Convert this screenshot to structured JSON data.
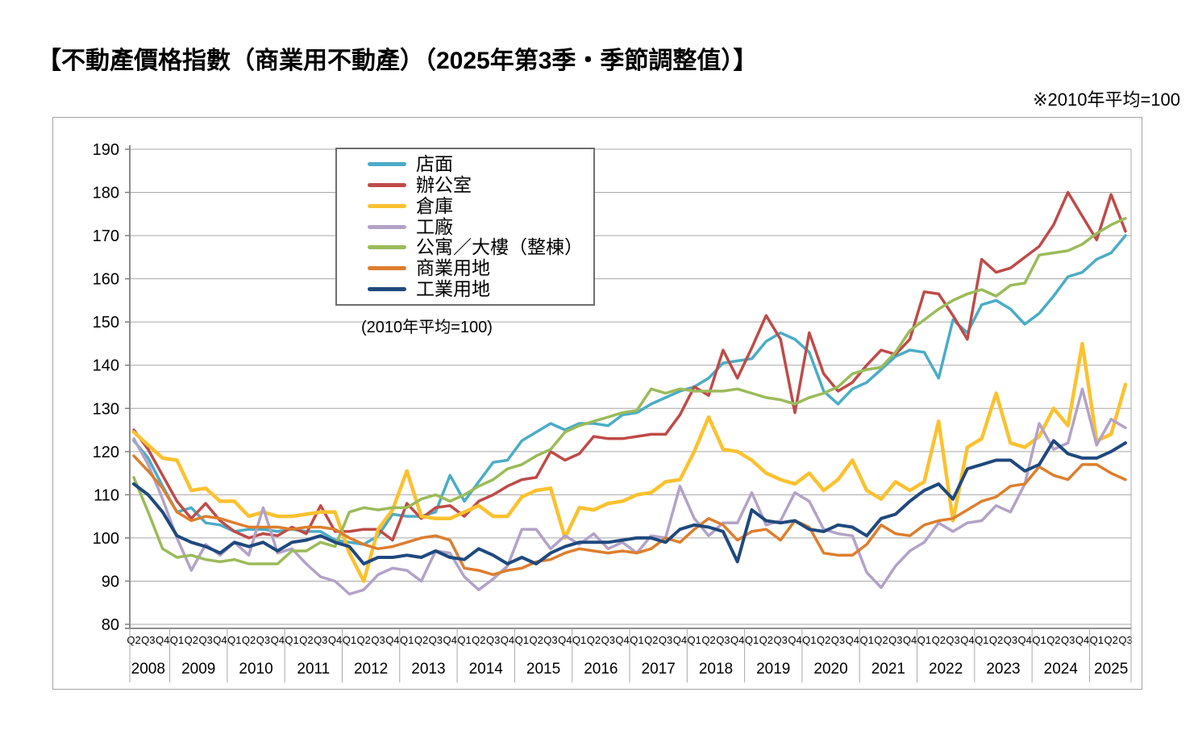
{
  "page": {
    "title": "【不動產價格指數（商業用不動產）（2025年第3季・季節調整值）】",
    "unit_note": "※2010年平均=100"
  },
  "chart_data": {
    "type": "line",
    "title": "不動產價格指數（商業用不動產）",
    "inner_note": "(2010年平均=100)",
    "ylabel": "",
    "xlabel": "",
    "ylim": [
      80,
      190
    ],
    "y_step": 10,
    "grid": true,
    "legend_position": "upper-left-inside",
    "axis_color": "#7f7f7f",
    "grid_color": "#a8a8a8",
    "x_periods": [
      {
        "year": "2008",
        "quarters": [
          "Q2",
          "Q3",
          "Q4"
        ]
      },
      {
        "year": "2009",
        "quarters": [
          "Q1",
          "Q2",
          "Q3",
          "Q4"
        ]
      },
      {
        "year": "2010",
        "quarters": [
          "Q1",
          "Q2",
          "Q3",
          "Q4"
        ]
      },
      {
        "year": "2011",
        "quarters": [
          "Q1",
          "Q2",
          "Q3",
          "Q4"
        ]
      },
      {
        "year": "2012",
        "quarters": [
          "Q1",
          "Q2",
          "Q3",
          "Q4"
        ]
      },
      {
        "year": "2013",
        "quarters": [
          "Q1",
          "Q2",
          "Q3",
          "Q4"
        ]
      },
      {
        "year": "2014",
        "quarters": [
          "Q1",
          "Q2",
          "Q3",
          "Q4"
        ]
      },
      {
        "year": "2015",
        "quarters": [
          "Q1",
          "Q2",
          "Q3",
          "Q4"
        ]
      },
      {
        "year": "2016",
        "quarters": [
          "Q1",
          "Q2",
          "Q3",
          "Q4"
        ]
      },
      {
        "year": "2017",
        "quarters": [
          "Q1",
          "Q2",
          "Q3",
          "Q4"
        ]
      },
      {
        "year": "2018",
        "quarters": [
          "Q1",
          "Q2",
          "Q3",
          "Q4"
        ]
      },
      {
        "year": "2019",
        "quarters": [
          "Q1",
          "Q2",
          "Q3",
          "Q4"
        ]
      },
      {
        "year": "2020",
        "quarters": [
          "Q1",
          "Q2",
          "Q3",
          "Q4"
        ]
      },
      {
        "year": "2021",
        "quarters": [
          "Q1",
          "Q2",
          "Q3",
          "Q4"
        ]
      },
      {
        "year": "2022",
        "quarters": [
          "Q1",
          "Q2",
          "Q3",
          "Q4"
        ]
      },
      {
        "year": "2023",
        "quarters": [
          "Q1",
          "Q2",
          "Q3",
          "Q4"
        ]
      },
      {
        "year": "2024",
        "quarters": [
          "Q1",
          "Q2",
          "Q3",
          "Q4"
        ]
      },
      {
        "year": "2025",
        "quarters": [
          "Q1",
          "Q2",
          "Q3"
        ]
      }
    ],
    "series": [
      {
        "name": "店面",
        "color": "#4BACC6",
        "width": 3.5,
        "values": [
          122.5,
          118.5,
          112,
          106,
          107,
          103.5,
          103,
          101.5,
          102,
          102,
          101.5,
          102,
          101.5,
          101.5,
          99.5,
          99,
          98.5,
          100.5,
          105.5,
          105,
          105,
          106,
          114.5,
          108.5,
          113,
          117.5,
          118,
          122.5,
          124.5,
          126.5,
          125,
          126.5,
          126.5,
          126,
          128.5,
          129,
          131,
          132.5,
          134,
          135,
          137,
          140.5,
          141,
          141.5,
          145.5,
          147.5,
          146,
          143,
          134,
          131,
          134.5,
          136,
          139,
          142,
          143.5,
          143,
          137,
          150.5,
          147.5,
          154,
          155,
          153,
          149.5,
          152,
          156,
          160.5,
          161.5,
          164.5,
          166,
          170
        ]
      },
      {
        "name": "辦公室",
        "color": "#BE4B48",
        "width": 3.5,
        "values": [
          125,
          120.5,
          114.5,
          108.5,
          104.5,
          108,
          104,
          101.5,
          100,
          101,
          100.5,
          102.5,
          101,
          107.5,
          101.5,
          101.5,
          102,
          102,
          99.5,
          108,
          104.5,
          107,
          107.5,
          105,
          108.5,
          110,
          112,
          113.5,
          114,
          120,
          118,
          119.5,
          123.5,
          123,
          123,
          123.5,
          124,
          124,
          128.5,
          135,
          133,
          143.5,
          137,
          144,
          151.5,
          146,
          129,
          147.5,
          138,
          134,
          136,
          140,
          143.5,
          142.5,
          146,
          157,
          156.5,
          151.5,
          146,
          164.5,
          161.5,
          162.5,
          165,
          167.5,
          172.5,
          180,
          174.5,
          169,
          179.5,
          171
        ]
      },
      {
        "name": "倉庫",
        "color": "#FBC12F",
        "width": 4.5,
        "values": [
          124.5,
          121.5,
          118.5,
          118,
          111,
          111.5,
          108.5,
          108.5,
          105,
          106,
          105,
          105,
          105.5,
          106,
          106,
          96.5,
          90,
          102,
          106.5,
          115.5,
          105,
          104.5,
          104.5,
          106,
          107.5,
          105,
          105,
          109.5,
          111,
          111.5,
          100,
          107,
          106.5,
          108,
          108.5,
          110,
          110.5,
          113,
          113.5,
          120,
          128,
          120.5,
          120,
          118,
          115,
          113.5,
          112.5,
          115,
          111,
          113.5,
          118,
          111,
          109,
          113,
          111,
          113,
          127,
          104,
          121,
          123,
          133.5,
          122,
          121,
          123.5,
          130,
          126,
          145,
          122.5,
          124,
          135.5
        ]
      },
      {
        "name": "工廠",
        "color": "#B3A2C7",
        "width": 3.5,
        "values": [
          123,
          117,
          109,
          100,
          92.5,
          98.5,
          96,
          99,
          96,
          107,
          96.5,
          97.5,
          94,
          91,
          90,
          87,
          88,
          91.5,
          93,
          92.5,
          90,
          97,
          96.5,
          91,
          88,
          90.5,
          93.5,
          102,
          102,
          97.5,
          100.5,
          98.5,
          101,
          97.5,
          99,
          96.5,
          100.5,
          100,
          112,
          104.5,
          100.5,
          103.5,
          103.5,
          110.5,
          103,
          104,
          110.5,
          108.5,
          102,
          101,
          100.5,
          92,
          88.5,
          93.5,
          97,
          99,
          103.5,
          101.5,
          103.5,
          104,
          107.5,
          106,
          112.5,
          126.5,
          120.5,
          122,
          134.5,
          121.5,
          127.5,
          125.5
        ]
      },
      {
        "name": "公寓／大樓（整棟）",
        "color": "#9BBB59",
        "width": 3.5,
        "values": [
          114,
          106,
          97.5,
          95.5,
          96,
          95,
          94.5,
          95,
          94,
          94,
          94,
          97,
          97,
          99,
          98,
          106,
          107,
          106.5,
          107,
          107,
          109,
          110,
          108.5,
          110,
          112,
          113.5,
          116,
          117,
          119,
          120.5,
          124.5,
          126,
          127,
          128,
          129,
          129.5,
          134.5,
          133.5,
          134.5,
          134,
          134,
          134,
          134.5,
          133.5,
          132.5,
          132,
          131,
          132.5,
          133.5,
          135,
          138,
          139,
          139.5,
          143,
          148,
          150.5,
          153,
          155,
          156.5,
          157.5,
          156,
          158.5,
          159,
          165.5,
          166,
          166.5,
          168,
          170.5,
          172.5,
          174
        ]
      },
      {
        "name": "商業用地",
        "color": "#DD7E2E",
        "width": 3.5,
        "values": [
          119,
          115.5,
          111.5,
          106,
          104,
          105,
          104.5,
          103.5,
          102.5,
          102.5,
          102.5,
          102,
          102.5,
          102.5,
          102,
          100,
          98.5,
          97.5,
          98,
          99,
          100,
          100.5,
          99.5,
          93,
          92.5,
          91.5,
          92.5,
          93,
          94.5,
          95,
          96.5,
          97.5,
          97,
          96.5,
          97,
          96.5,
          97.5,
          100,
          99,
          102,
          104.5,
          103,
          99.5,
          101.5,
          102,
          99.5,
          104,
          102.5,
          96.5,
          96,
          96,
          98.5,
          103,
          101,
          100.5,
          103,
          104,
          104.5,
          106.5,
          108.5,
          109.5,
          112,
          112.5,
          116.5,
          114.5,
          113.5,
          117,
          117,
          115,
          113.5
        ]
      },
      {
        "name": "工業用地",
        "color": "#1F497D",
        "width": 4,
        "values": [
          112.5,
          110,
          106,
          100.5,
          99,
          98,
          96.5,
          99,
          98,
          99,
          97,
          99,
          99.5,
          100.5,
          99,
          98,
          94,
          95.5,
          95.5,
          96,
          95.5,
          97,
          95.5,
          95,
          97.5,
          96,
          94,
          95.5,
          94,
          96.5,
          98,
          99,
          99,
          99,
          99.5,
          100,
          100,
          99,
          102,
          103,
          102.5,
          101.5,
          94.5,
          106.5,
          104,
          103.5,
          104,
          102,
          101.5,
          103,
          102.5,
          100.5,
          104.5,
          105.5,
          108.5,
          111,
          112.5,
          109,
          116,
          117,
          118,
          118,
          115.5,
          117,
          122.5,
          119.5,
          118.5,
          118.5,
          120,
          122
        ]
      }
    ]
  }
}
